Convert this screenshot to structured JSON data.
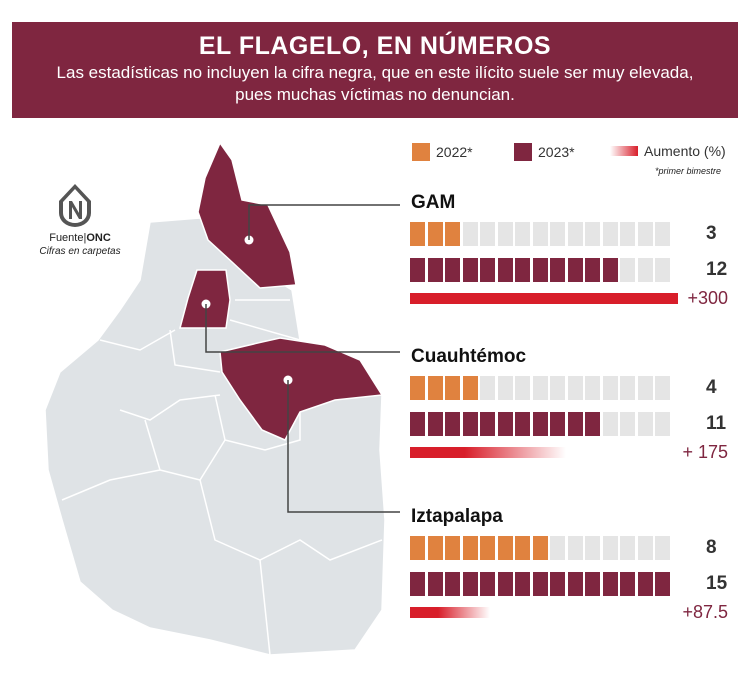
{
  "header": {
    "title": "EL FLAGELO, EN NÚMEROS",
    "subtitle_line1": "Las estadísticas no incluyen la cifra negra, que en este ilícito suele ser muy elevada,",
    "subtitle_line2": "pues muchas víctimas no denuncian."
  },
  "source": {
    "prefix": "Fuente|",
    "name": "ONC",
    "unit": "Cifras en carpetas"
  },
  "legend": {
    "y2022": "2022*",
    "y2023": "2023*",
    "increase": "Aumento (%)",
    "note": "*primer bimestre"
  },
  "colors": {
    "y2022": "#e0823f",
    "y2023": "#7f2640",
    "increase": "#d81e2a",
    "empty": "#e5e5e5",
    "map_base": "#dfe3e6",
    "map_highlight": "#7f2640"
  },
  "chart_data": {
    "type": "bar",
    "title": "EL FLAGELO, EN NÚMEROS",
    "categories": [
      "GAM",
      "Cuauhtémoc",
      "Iztapalapa"
    ],
    "series": [
      {
        "name": "2022*",
        "values": [
          3,
          4,
          8
        ]
      },
      {
        "name": "2023*",
        "values": [
          12,
          11,
          15
        ]
      },
      {
        "name": "Aumento (%)",
        "values": [
          300,
          175,
          87.5
        ]
      }
    ],
    "increase_labels": [
      "+300",
      "+ 175",
      "+87.5"
    ],
    "scale_max": 15
  }
}
